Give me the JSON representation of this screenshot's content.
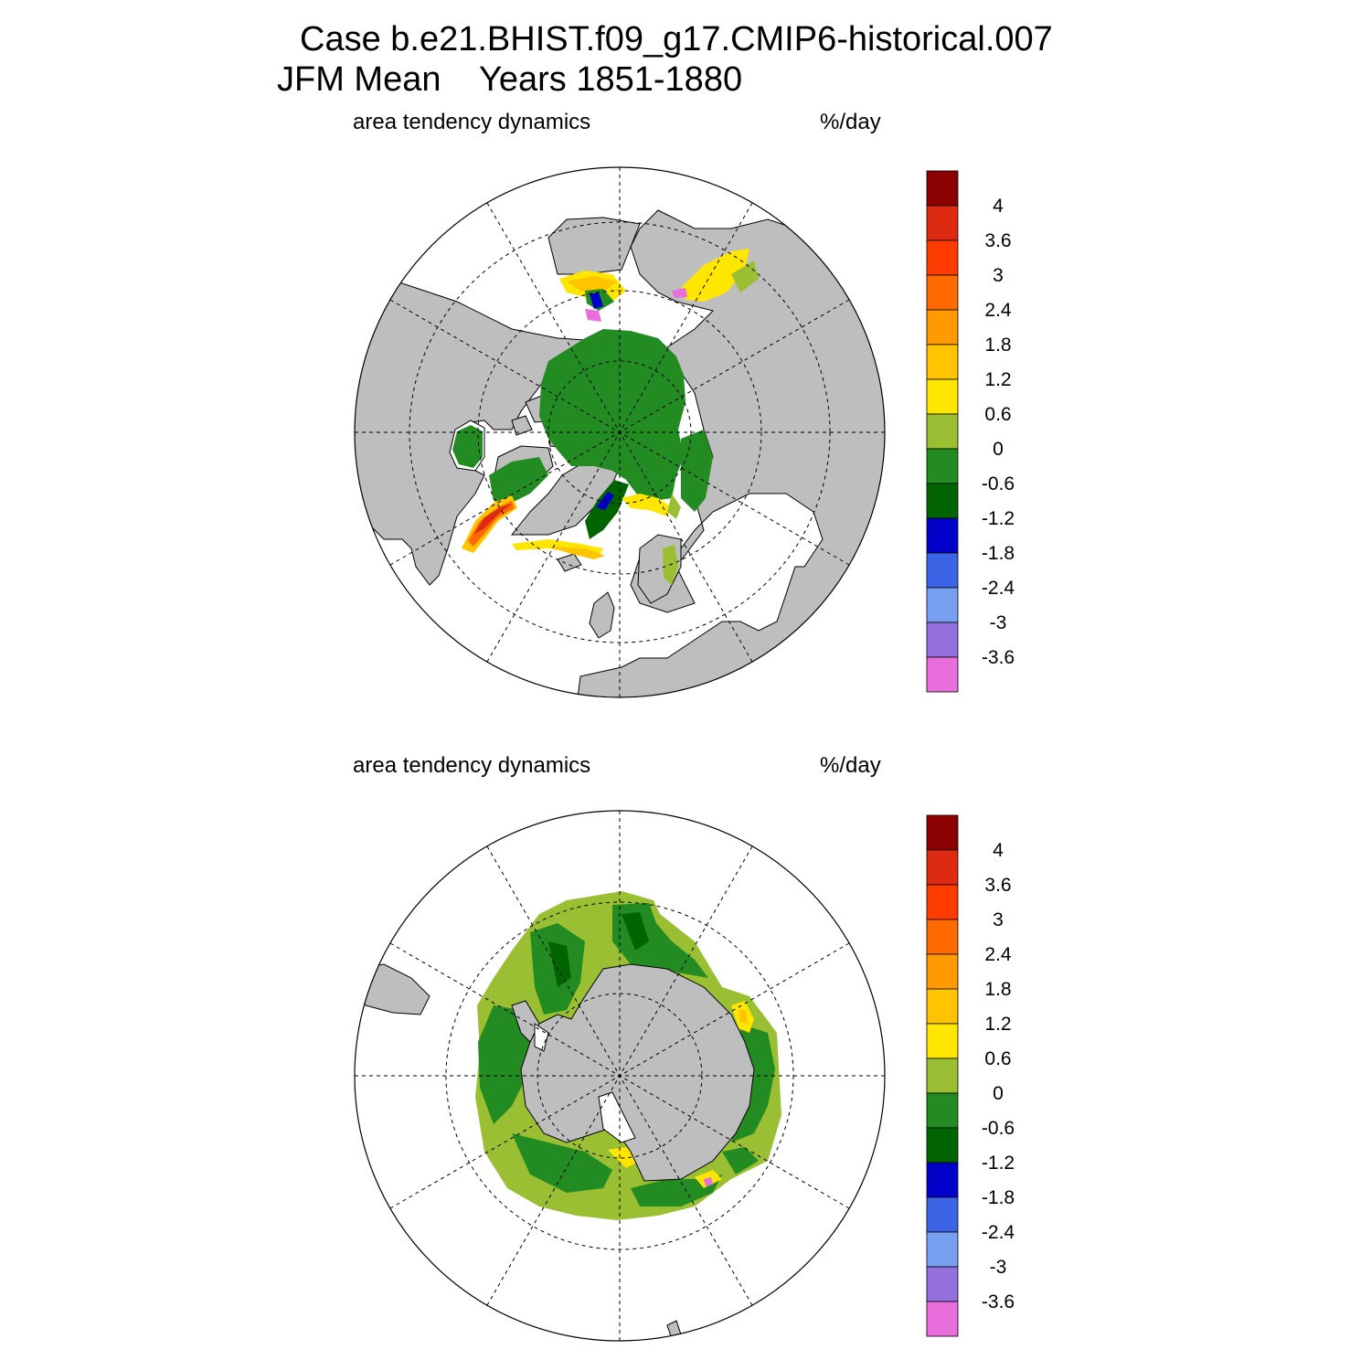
{
  "title": {
    "line1": "Case b.e21.BHIST.f09_g17.CMIP6-historical.007",
    "line2": "JFM Mean    Years 1851-1880"
  },
  "panels": [
    {
      "id": "north",
      "hemisphere": "north",
      "variable_label": "area tendency dynamics",
      "units": "%/day"
    },
    {
      "id": "south",
      "hemisphere": "south",
      "variable_label": "area tendency dynamics",
      "units": "%/day"
    }
  ],
  "colorbar": {
    "levels": [
      "4",
      "3.6",
      "3",
      "2.4",
      "1.8",
      "1.2",
      "0.6",
      "0",
      "-0.6",
      "-1.2",
      "-1.8",
      "-2.4",
      "-3",
      "-3.6"
    ],
    "colors": [
      "#8b0000",
      "#dc2b10",
      "#ff3c00",
      "#ff6a00",
      "#ff9a00",
      "#ffc400",
      "#ffe600",
      "#9bbf32",
      "#228b22",
      "#006400",
      "#0000c8",
      "#3c64e6",
      "#78a0f0",
      "#9370db",
      "#e86edc"
    ]
  },
  "map_colors": {
    "land": "#bebebe",
    "ocean": "#ffffff",
    "coast": "#000000",
    "graticule": "#000000"
  }
}
